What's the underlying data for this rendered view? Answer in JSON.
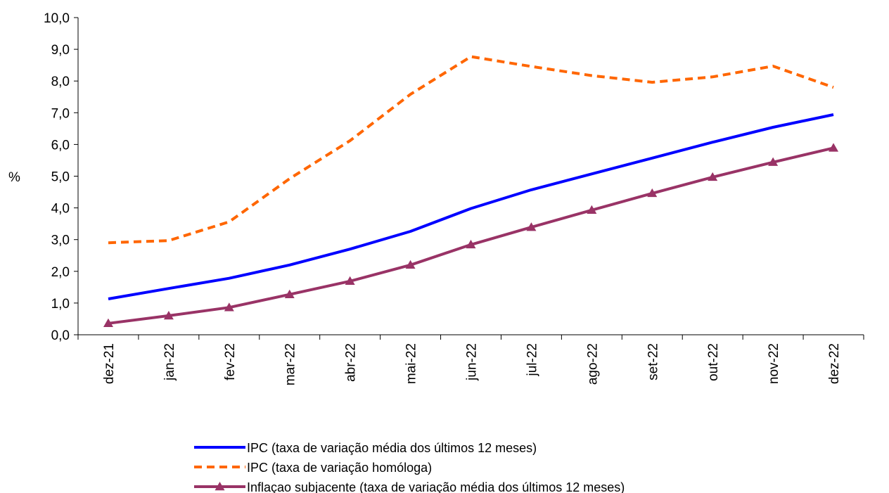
{
  "chart_data": {
    "type": "line",
    "ylabel": "%",
    "xlabel": "",
    "ylim": [
      0,
      10
    ],
    "yticks": [
      "0,0",
      "1,0",
      "2,0",
      "3,0",
      "4,0",
      "5,0",
      "6,0",
      "7,0",
      "8,0",
      "9,0",
      "10,0"
    ],
    "categories": [
      "dez-21",
      "jan-22",
      "fev-22",
      "mar-22",
      "abr-22",
      "mai-22",
      "jun-22",
      "jul-22",
      "ago-22",
      "set-22",
      "out-22",
      "nov-22",
      "dez-22"
    ],
    "grid": false,
    "legend_position": "bottom",
    "series": [
      {
        "name": "IPC (taxa de variação média dos últimos 12 meses)",
        "color": "#0000FF",
        "style": "solid",
        "values": [
          1.13,
          1.46,
          1.78,
          2.2,
          2.7,
          3.26,
          3.98,
          4.57,
          5.07,
          5.57,
          6.07,
          6.54,
          6.94
        ]
      },
      {
        "name": "IPC (taxa de variação homóloga)",
        "color": "#FF6600",
        "style": "dashed",
        "values": [
          2.9,
          2.97,
          3.56,
          4.92,
          6.12,
          7.58,
          8.77,
          8.46,
          8.17,
          7.96,
          8.13,
          8.47,
          7.8
        ]
      },
      {
        "name": "Inflaçao subjacente (taxa de variação média dos últimos 12 meses)",
        "color": "#993366",
        "style": "solid-triangle",
        "values": [
          0.36,
          0.6,
          0.86,
          1.27,
          1.69,
          2.2,
          2.84,
          3.39,
          3.93,
          4.46,
          4.97,
          5.44,
          5.89
        ]
      }
    ]
  }
}
